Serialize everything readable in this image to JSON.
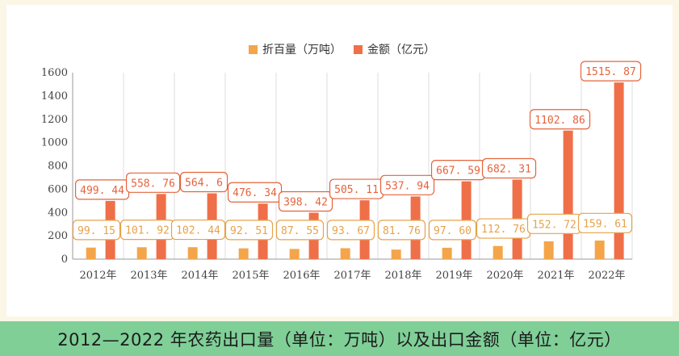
{
  "caption": "2012—2022 年农药出口量（单位：万吨）以及出口金额（单位：亿元）",
  "colors": {
    "volume": "#f4a54a",
    "amount": "#ef6f48",
    "volume_label": "#e6a24b",
    "amount_label": "#e5633b",
    "grid": "#dcdcdc",
    "axis": "#999999"
  },
  "chart_data": {
    "type": "bar",
    "categories": [
      "2012年",
      "2013年",
      "2014年",
      "2015年",
      "2016年",
      "2017年",
      "2018年",
      "2019年",
      "2020年",
      "2021年",
      "2022年"
    ],
    "series": [
      {
        "name": "折百量（万吨）",
        "values": [
          99.15,
          101.92,
          102.44,
          92.51,
          87.55,
          93.67,
          81.76,
          97.6,
          112.76,
          152.72,
          159.61
        ],
        "labels": [
          "99. 15",
          "101. 92",
          "102. 44",
          "92. 51",
          "87. 55",
          "93. 67",
          "81. 76",
          "97. 60",
          "112. 76",
          "152. 72",
          "159. 61"
        ]
      },
      {
        "name": "金额（亿元）",
        "values": [
          499.44,
          558.76,
          564.6,
          476.34,
          398.42,
          505.11,
          537.94,
          667.59,
          682.31,
          1102.86,
          1515.87
        ],
        "labels": [
          "499. 44",
          "558. 76",
          "564. 6",
          "476. 34",
          "398. 42",
          "505. 11",
          "537. 94",
          "667. 59",
          "682. 31",
          "1102. 86",
          "1515. 87"
        ]
      }
    ],
    "yticks": [
      "0",
      "200",
      "400",
      "600",
      "800",
      "1000",
      "1200",
      "1400",
      "1600"
    ],
    "ylim": [
      0,
      1600
    ],
    "grid": "vertical",
    "legend": "top-center"
  }
}
